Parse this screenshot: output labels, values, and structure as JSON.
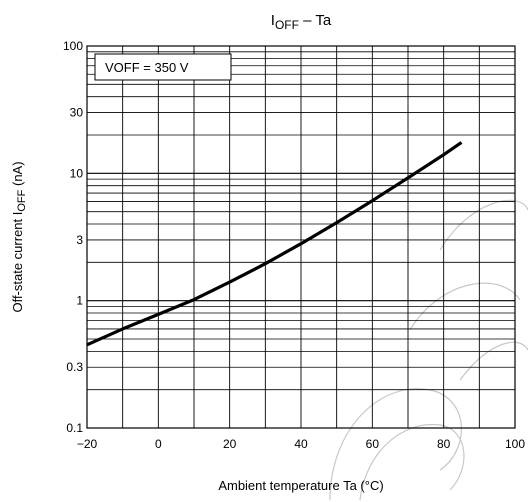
{
  "chart_data": {
    "type": "line",
    "title": "IOFF – Ta",
    "title_main": "I",
    "title_sub": "OFF",
    "title_rest": " – Ta",
    "xlabel": "Ambient temperature    Ta    (°C)",
    "ylabel_main": "Off-state current    I",
    "ylabel_sub": "OFF",
    "ylabel_unit": "    (nA)",
    "x_scale": "linear",
    "y_scale": "log",
    "xlim": [
      -20,
      100
    ],
    "ylim": [
      0.1,
      100
    ],
    "x_ticks": [
      -20,
      0,
      20,
      40,
      60,
      80,
      100
    ],
    "x_tick_labels": [
      "−20",
      "0",
      "20",
      "40",
      "60",
      "80",
      "100"
    ],
    "y_ticks": [
      0.1,
      0.3,
      1,
      3,
      10,
      30,
      100
    ],
    "y_tick_labels": [
      "0.1",
      "0.3",
      "1",
      "3",
      "10",
      "30",
      "100"
    ],
    "grid": true,
    "annotation": "VOFF = 350 V",
    "series": [
      {
        "x": [
          -20,
          -10,
          0,
          10,
          20,
          30,
          40,
          50,
          60,
          70,
          80,
          85
        ],
        "y": [
          0.45,
          0.6,
          0.78,
          1.02,
          1.4,
          1.95,
          2.8,
          4.1,
          6.1,
          9.2,
          14.0,
          17.5
        ]
      }
    ]
  }
}
